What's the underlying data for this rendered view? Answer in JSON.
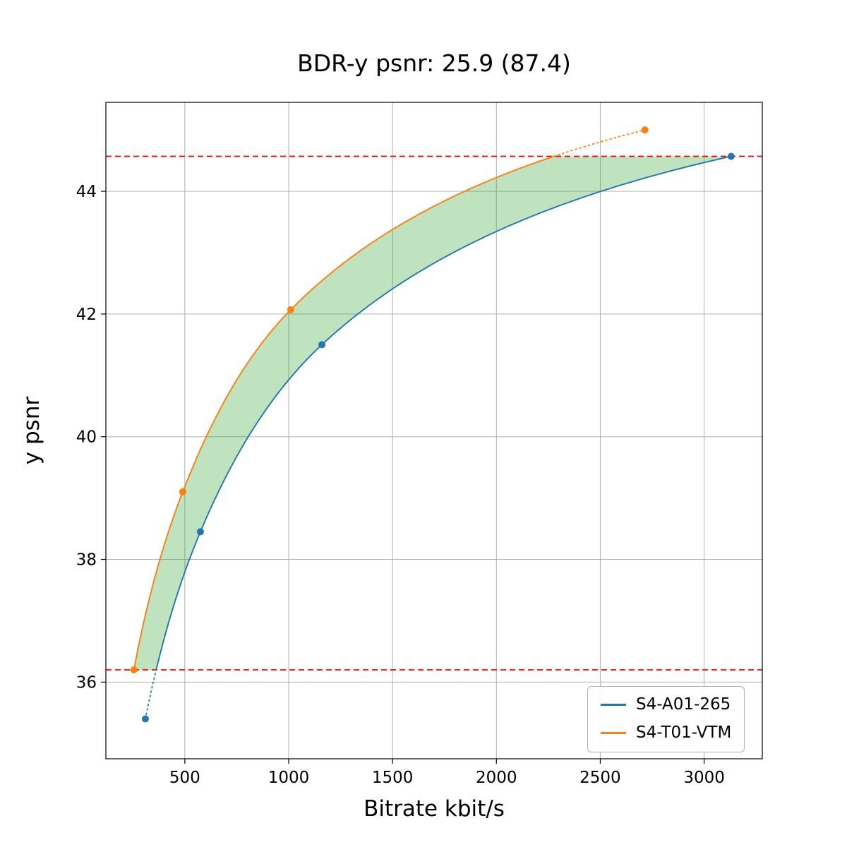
{
  "chart_data": {
    "type": "line",
    "title": "BDR-y psnr: 25.9 (87.4)",
    "xlabel": "Bitrate kbit/s",
    "ylabel": "y psnr",
    "xlim": [
      120,
      3280
    ],
    "ylim": [
      34.75,
      45.45
    ],
    "x_ticks": [
      500,
      1000,
      1500,
      2000,
      2500,
      3000
    ],
    "y_ticks": [
      36,
      38,
      40,
      42,
      44
    ],
    "grid": true,
    "grid_color": "#b0b0b0",
    "legend_position": "lower right",
    "series": [
      {
        "name": "S4-A01-265",
        "color": "#1f77b4",
        "points": [
          [
            310,
            35.4
          ],
          [
            575,
            38.45
          ],
          [
            1160,
            41.5
          ],
          [
            3130,
            44.57
          ]
        ]
      },
      {
        "name": "S4-T01-VTM",
        "color": "#ff7f0e",
        "points": [
          [
            255,
            36.2
          ],
          [
            490,
            39.1
          ],
          [
            1010,
            42.07
          ],
          [
            2715,
            45.0
          ]
        ]
      }
    ],
    "overlap_band": {
      "y_low": 36.2,
      "y_high": 44.57,
      "line_color": "#ff0000",
      "line_style": "dashed"
    },
    "shaded_region": {
      "fill_color": "#2ca02c",
      "fill_alpha": 0.3
    }
  }
}
